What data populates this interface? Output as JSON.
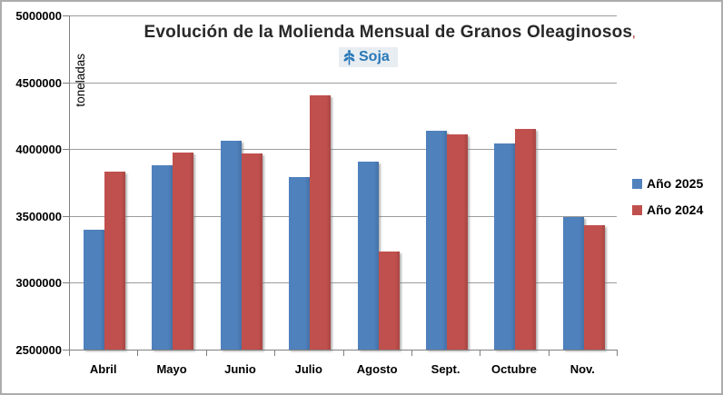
{
  "chart_data": {
    "type": "bar",
    "title": "Evolución de la Molienda Mensual de Granos Oleaginosos",
    "title_footnote": ",",
    "badge": {
      "label": "Soja",
      "icon": "soy-plant-icon",
      "text_color": "#2878B8",
      "bg_color": "#E8EDF2"
    },
    "ylabel": "toneladas",
    "categories": [
      "Abril",
      "Mayo",
      "Junio",
      "Julio",
      "Agosto",
      "Sept.",
      "Octubre",
      "Nov."
    ],
    "series": [
      {
        "name": "Año 2025",
        "color": "#4F81BD",
        "values": [
          3400000,
          3880000,
          4065000,
          3790000,
          3905000,
          4135000,
          4040000,
          3490000
        ]
      },
      {
        "name": "Año 2024",
        "color": "#C0504D",
        "values": [
          3830000,
          3975000,
          3965000,
          4400000,
          3235000,
          4110000,
          4150000,
          3430000
        ]
      }
    ],
    "ylim": [
      2500000,
      5000000
    ],
    "ytick_step": 500000,
    "ytick_labels": [
      "2500000",
      "3000000",
      "3500000",
      "4000000",
      "4500000",
      "5000000"
    ],
    "grid": true,
    "legend_position": "right",
    "gridline_color": "#9c9c9c",
    "axis_color": "#7f7f7f"
  }
}
